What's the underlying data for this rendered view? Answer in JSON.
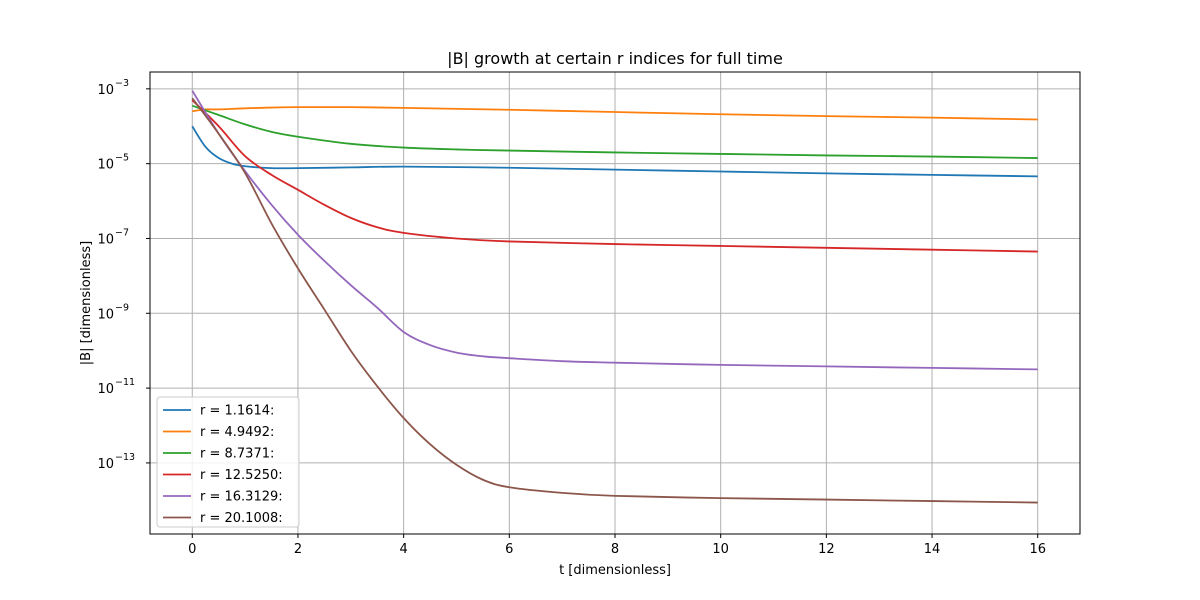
{
  "chart_data": {
    "type": "line",
    "title": "|B| growth at certain r indices for full time",
    "xlabel": "t [dimensionless]",
    "ylabel": "|B| [dimensionless]",
    "xlim": [
      -0.8,
      16.8
    ],
    "ylim_exp": [
      -14.9,
      -2.55
    ],
    "y_scale": "log",
    "grid": true,
    "legend_position": "lower-left",
    "x_ticks": [
      0,
      2,
      4,
      6,
      8,
      10,
      12,
      14,
      16
    ],
    "x_tick_labels": [
      "0",
      "2",
      "4",
      "6",
      "8",
      "10",
      "12",
      "14",
      "16"
    ],
    "y_tick_exps": [
      -3,
      -5,
      -7,
      -9,
      -11,
      -13
    ],
    "y_tick_labels": [
      "10",
      "10",
      "10",
      "10",
      "10",
      "10"
    ],
    "y_tick_sups": [
      "−3",
      "−5",
      "−7",
      "−9",
      "−11",
      "−13"
    ],
    "series": [
      {
        "name": "r = 1.1614:",
        "color": "#1f77b4",
        "x": [
          0,
          0.25,
          0.5,
          0.75,
          1,
          1.5,
          2,
          3,
          4,
          6,
          8,
          10,
          12,
          14,
          16
        ],
        "log10_y": [
          -4.0,
          -4.55,
          -4.85,
          -5.0,
          -5.07,
          -5.12,
          -5.12,
          -5.1,
          -5.08,
          -5.11,
          -5.16,
          -5.21,
          -5.26,
          -5.3,
          -5.34
        ]
      },
      {
        "name": "r = 4.9492:",
        "color": "#ff7f0e",
        "x": [
          0,
          0.25,
          0.5,
          1,
          1.5,
          2,
          3,
          4,
          6,
          8,
          10,
          12,
          14,
          16
        ],
        "log10_y": [
          -3.6,
          -3.55,
          -3.55,
          -3.52,
          -3.5,
          -3.49,
          -3.49,
          -3.51,
          -3.56,
          -3.62,
          -3.68,
          -3.73,
          -3.77,
          -3.82
        ]
      },
      {
        "name": "r = 8.7371:",
        "color": "#2ca02c",
        "x": [
          0,
          0.5,
          1,
          1.5,
          2,
          3,
          4,
          5,
          6,
          8,
          10,
          12,
          14,
          16
        ],
        "log10_y": [
          -3.45,
          -3.7,
          -3.95,
          -4.15,
          -4.28,
          -4.47,
          -4.57,
          -4.62,
          -4.65,
          -4.7,
          -4.74,
          -4.78,
          -4.81,
          -4.85
        ]
      },
      {
        "name": "r = 12.5250:",
        "color": "#d62728",
        "x": [
          0,
          0.5,
          1,
          1.5,
          2,
          2.5,
          3,
          3.5,
          4,
          5,
          6,
          8,
          10,
          12,
          14,
          16
        ],
        "log10_y": [
          -3.3,
          -4.0,
          -4.8,
          -5.3,
          -5.7,
          -6.1,
          -6.45,
          -6.7,
          -6.85,
          -7.0,
          -7.08,
          -7.15,
          -7.2,
          -7.25,
          -7.3,
          -7.35
        ]
      },
      {
        "name": "r = 16.3129:",
        "color": "#9467bd",
        "x": [
          0,
          0.5,
          1,
          1.5,
          2,
          2.5,
          3,
          3.5,
          4,
          4.5,
          5,
          5.5,
          6,
          7,
          8,
          10,
          12,
          14,
          16
        ],
        "log10_y": [
          -3.05,
          -4.2,
          -5.2,
          -6.1,
          -6.9,
          -7.6,
          -8.25,
          -8.85,
          -9.5,
          -9.85,
          -10.05,
          -10.15,
          -10.2,
          -10.28,
          -10.32,
          -10.38,
          -10.42,
          -10.46,
          -10.5
        ]
      },
      {
        "name": "r = 20.1008:",
        "color": "#8c564b",
        "x": [
          0,
          0.5,
          1,
          1.5,
          2,
          2.5,
          3,
          3.5,
          4,
          4.5,
          5,
          5.5,
          6,
          7,
          8,
          10,
          12,
          14,
          16
        ],
        "log10_y": [
          -3.25,
          -4.2,
          -5.25,
          -6.6,
          -7.8,
          -8.9,
          -10.0,
          -10.95,
          -11.8,
          -12.5,
          -13.05,
          -13.45,
          -13.65,
          -13.8,
          -13.88,
          -13.94,
          -13.98,
          -14.02,
          -14.06
        ]
      }
    ]
  }
}
